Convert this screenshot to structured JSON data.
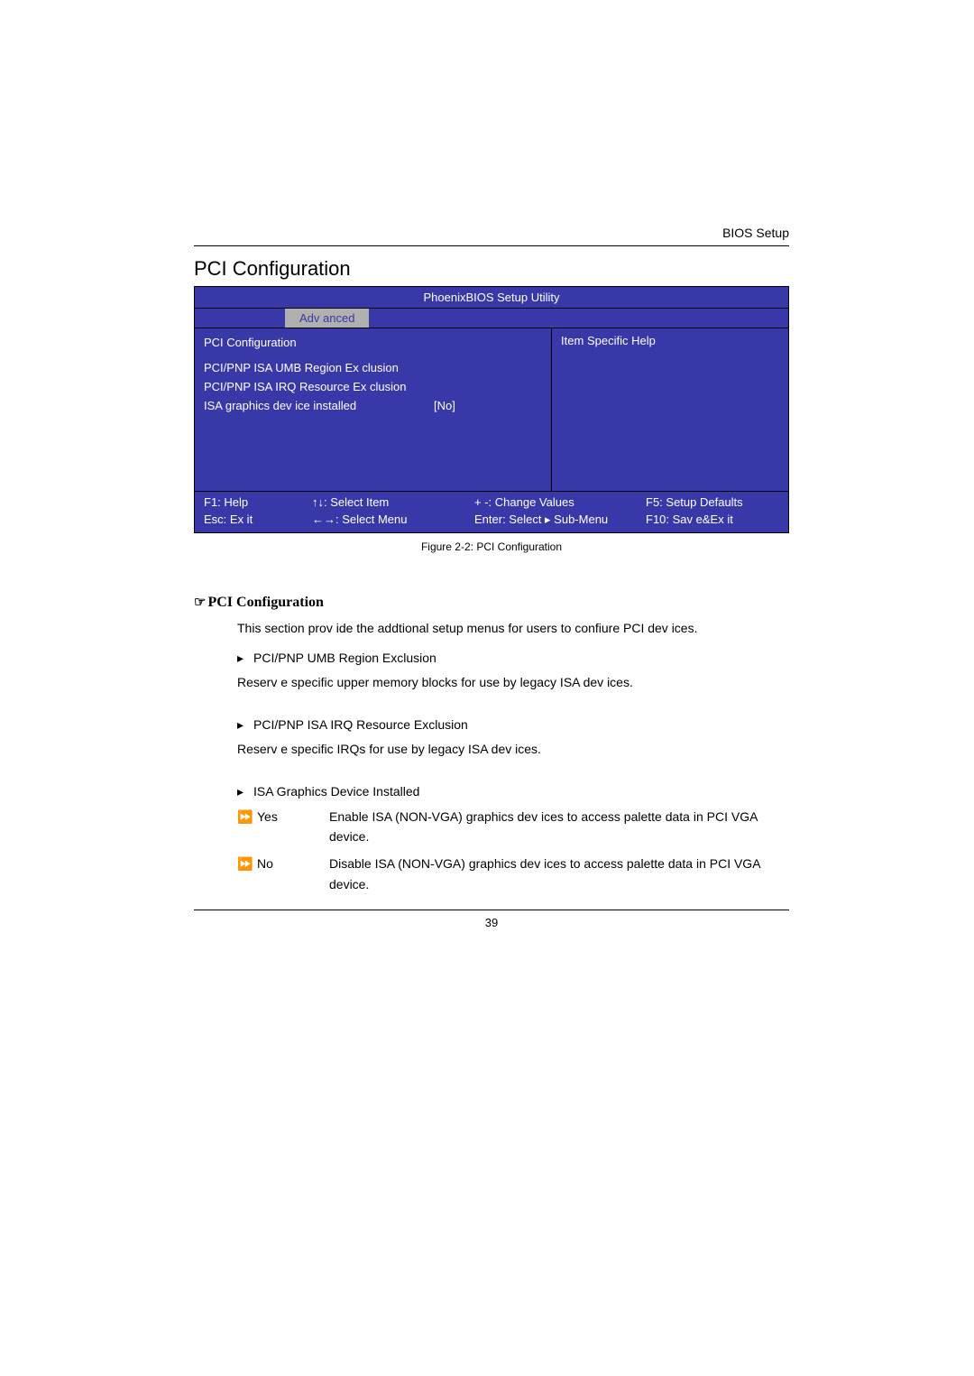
{
  "header": {
    "section_label": "BIOS Setup"
  },
  "page_title": "PCI Configuration",
  "bios": {
    "title": "PhoenixBIOS Setup Utility",
    "tab": "Adv anced",
    "left_section": "PCI Configuration",
    "right_section": "Item Specific Help",
    "menu_items": [
      {
        "label": "PCI/PNP ISA UMB Region Ex clusion",
        "value": ""
      },
      {
        "label": "PCI/PNP ISA IRQ Resource Ex clusion",
        "value": ""
      },
      {
        "label": "ISA graphics dev ice installed",
        "value": "[No]"
      }
    ],
    "footer": {
      "f1": "F1: Help",
      "updown": "↑↓: Select Item",
      "plusminus": "+ -: Change Values",
      "f5": "F5: Setup Defaults",
      "esc": "Esc: Ex it",
      "leftright": "←→: Select Menu",
      "enter": "Enter: Select ▸ Sub-Menu",
      "f10": "F10: Sav e&Ex it"
    }
  },
  "figure_caption": "Figure 2-2: PCI Configuration",
  "content": {
    "heading_icon": "☞",
    "heading": "PCI Configuration",
    "intro": "This section prov ide the addtional setup menus for users to confiure PCI dev ices.",
    "items": [
      {
        "bullet": "▸",
        "title": "PCI/PNP UMB Region Exclusion",
        "desc": "Reserv e specific upper memory blocks for use by legacy ISA dev ices."
      },
      {
        "bullet": "▸",
        "title": "PCI/PNP ISA IRQ Resource Exclusion",
        "desc": "Reserv e specific IRQs for use by legacy ISA dev ices."
      },
      {
        "bullet": "▸",
        "title": "ISA Graphics Device Installed",
        "options": [
          {
            "bullet": "⏩",
            "label": "Yes",
            "desc": "Enable ISA (NON-VGA) graphics dev ices to access palette data in PCI VGA device."
          },
          {
            "bullet": "⏩",
            "label": "No",
            "desc": "Disable ISA (NON-VGA) graphics dev ices to access palette data in PCI VGA device."
          }
        ]
      }
    ]
  },
  "page_number": "39",
  "colors": {
    "bios_bg": "#3838a8",
    "bios_tab_bg": "#b0b0b0",
    "text": "#000000",
    "bios_text": "#ffffff"
  }
}
